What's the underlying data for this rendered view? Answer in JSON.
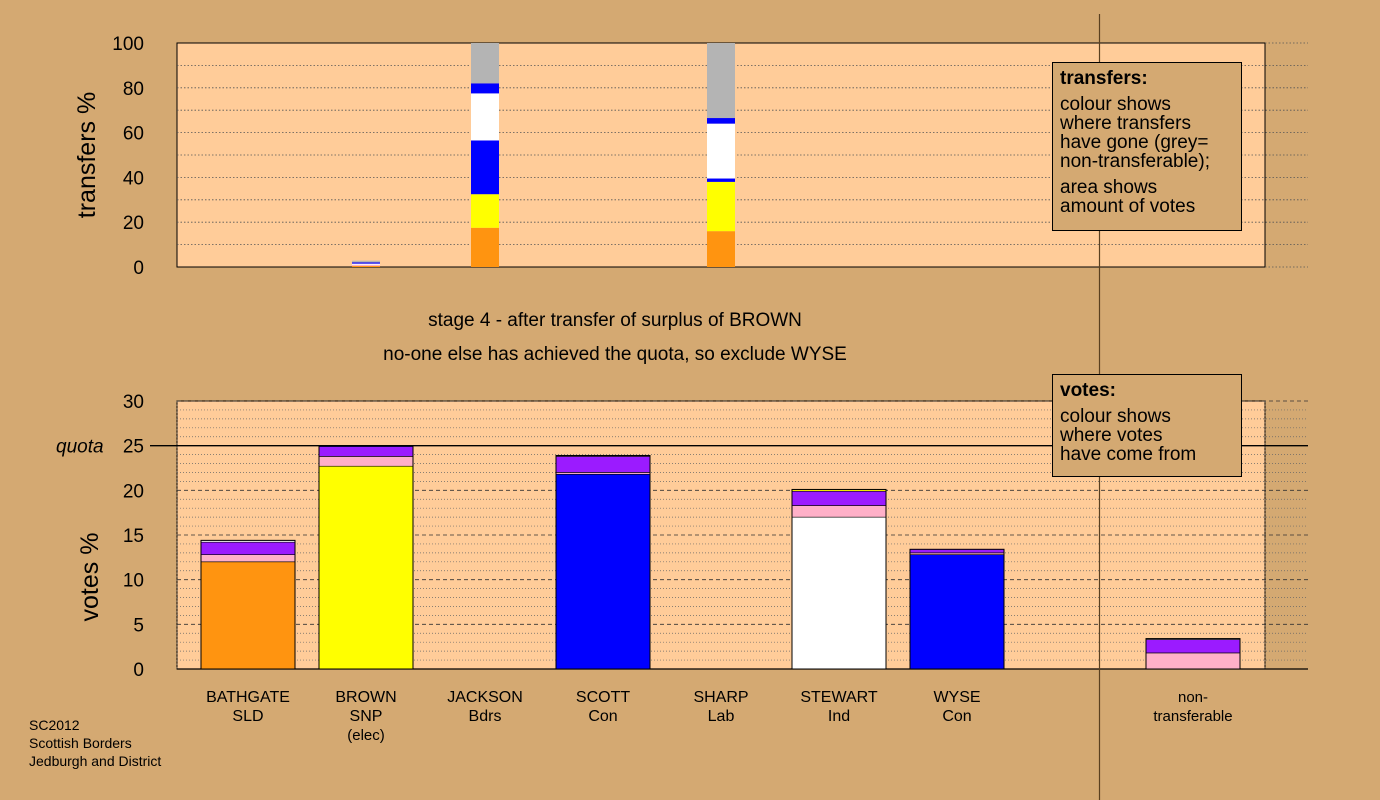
{
  "stage": {
    "line1": "stage 4 - after transfer of surplus of BROWN",
    "line2": "no-one else has achieved the quota, so exclude WYSE"
  },
  "footer": [
    "SC2012",
    "Scottish Borders",
    "Jedburgh and District"
  ],
  "transfers_box": {
    "title": "transfers:",
    "lines_a": [
      "colour shows",
      "where transfers",
      "have gone (grey=",
      "non-transferable);"
    ],
    "lines_b": [
      "area shows",
      "amount of votes"
    ]
  },
  "votes_box": {
    "title": "votes:",
    "lines": [
      "colour shows",
      "where votes",
      "have come from"
    ]
  },
  "colors": {
    "SLD": "#FF9410",
    "SNP": "#FFFF00",
    "Con": "#0000FF",
    "Ind": "#FFFFFF",
    "Bdrs": "#9B1BFF",
    "Lab": "#FFB0C8",
    "NT": "#B4B4B4",
    "plot_bg": "#FFCC99",
    "page_bg": "#D4A972"
  },
  "candidates": [
    {
      "name": "BATHGATE",
      "party": "SLD",
      "extra": ""
    },
    {
      "name": "BROWN",
      "party": "SNP",
      "extra": "(elec)"
    },
    {
      "name": "JACKSON",
      "party": "Bdrs",
      "extra": ""
    },
    {
      "name": "SCOTT",
      "party": "Con",
      "extra": ""
    },
    {
      "name": "SHARP",
      "party": "Lab",
      "extra": ""
    },
    {
      "name": "STEWART",
      "party": "Ind",
      "extra": ""
    },
    {
      "name": "WYSE",
      "party": "Con",
      "extra": ""
    }
  ],
  "nontransferable_label": [
    "non-",
    "transferable"
  ],
  "chart_data": [
    {
      "type": "bar",
      "title": "",
      "ylabel": "transfers %",
      "ylim": [
        0,
        100
      ],
      "yticks": [
        0,
        20,
        40,
        60,
        80,
        100
      ],
      "grid": true,
      "stacked": true,
      "columns": [
        {
          "category": "BROWN",
          "segments": [
            {
              "party": "SLD",
              "value": 0.5
            },
            {
              "party": "Lab",
              "value": 0.5
            },
            {
              "party": "Ind",
              "value": 0.5
            },
            {
              "party": "Con",
              "value": 0.6
            },
            {
              "party": "NT",
              "value": 0.7
            }
          ]
        },
        {
          "category": "JACKSON",
          "segments": [
            {
              "party": "SLD",
              "value": 17.5
            },
            {
              "party": "SNP",
              "value": 15
            },
            {
              "party": "Con",
              "value": 24
            },
            {
              "party": "Ind",
              "value": 21
            },
            {
              "party": "Con",
              "value": 4.5
            },
            {
              "party": "NT",
              "value": 18
            }
          ]
        },
        {
          "category": "SHARP",
          "segments": [
            {
              "party": "SLD",
              "value": 16
            },
            {
              "party": "SNP",
              "value": 22
            },
            {
              "party": "Con",
              "value": 1.5
            },
            {
              "party": "Ind",
              "value": 24.5
            },
            {
              "party": "Con",
              "value": 2.5
            },
            {
              "party": "NT",
              "value": 33.5
            }
          ]
        }
      ]
    },
    {
      "type": "bar",
      "title": "",
      "ylabel": "votes %",
      "ylim": [
        0,
        30
      ],
      "yticks": [
        0,
        5,
        10,
        15,
        20,
        25,
        30
      ],
      "quota": 25,
      "quota_label": "quota",
      "grid": true,
      "stacked": true,
      "columns": [
        {
          "category": "BATHGATE",
          "segments": [
            {
              "party": "SLD",
              "value": 12
            },
            {
              "party": "Lab",
              "value": 0.8
            },
            {
              "party": "Bdrs",
              "value": 1.4
            },
            {
              "party": "Ind",
              "value": 0.2
            }
          ]
        },
        {
          "category": "BROWN",
          "segments": [
            {
              "party": "SNP",
              "value": 22.7
            },
            {
              "party": "Lab",
              "value": 1.1
            },
            {
              "party": "Bdrs",
              "value": 1.1
            },
            {
              "party": "Con",
              "value": 0.1
            }
          ]
        },
        {
          "category": "SCOTT",
          "segments": [
            {
              "party": "Con",
              "value": 21.8
            },
            {
              "party": "Lab",
              "value": 0.2
            },
            {
              "party": "Bdrs",
              "value": 1.8
            },
            {
              "party": "Ind",
              "value": 0.1
            }
          ]
        },
        {
          "category": "STEWART",
          "segments": [
            {
              "party": "Ind",
              "value": 17
            },
            {
              "party": "Lab",
              "value": 1.3
            },
            {
              "party": "Bdrs",
              "value": 1.6
            },
            {
              "party": "SNP",
              "value": 0.2
            }
          ]
        },
        {
          "category": "WYSE",
          "segments": [
            {
              "party": "Con",
              "value": 12.8
            },
            {
              "party": "Lab",
              "value": 0.2
            },
            {
              "party": "Bdrs",
              "value": 0.4
            }
          ]
        },
        {
          "category": "non-transferable",
          "segments": [
            {
              "party": "Lab",
              "value": 1.8
            },
            {
              "party": "Bdrs",
              "value": 1.5
            },
            {
              "party": "Ind",
              "value": 0.1
            }
          ]
        }
      ]
    }
  ]
}
